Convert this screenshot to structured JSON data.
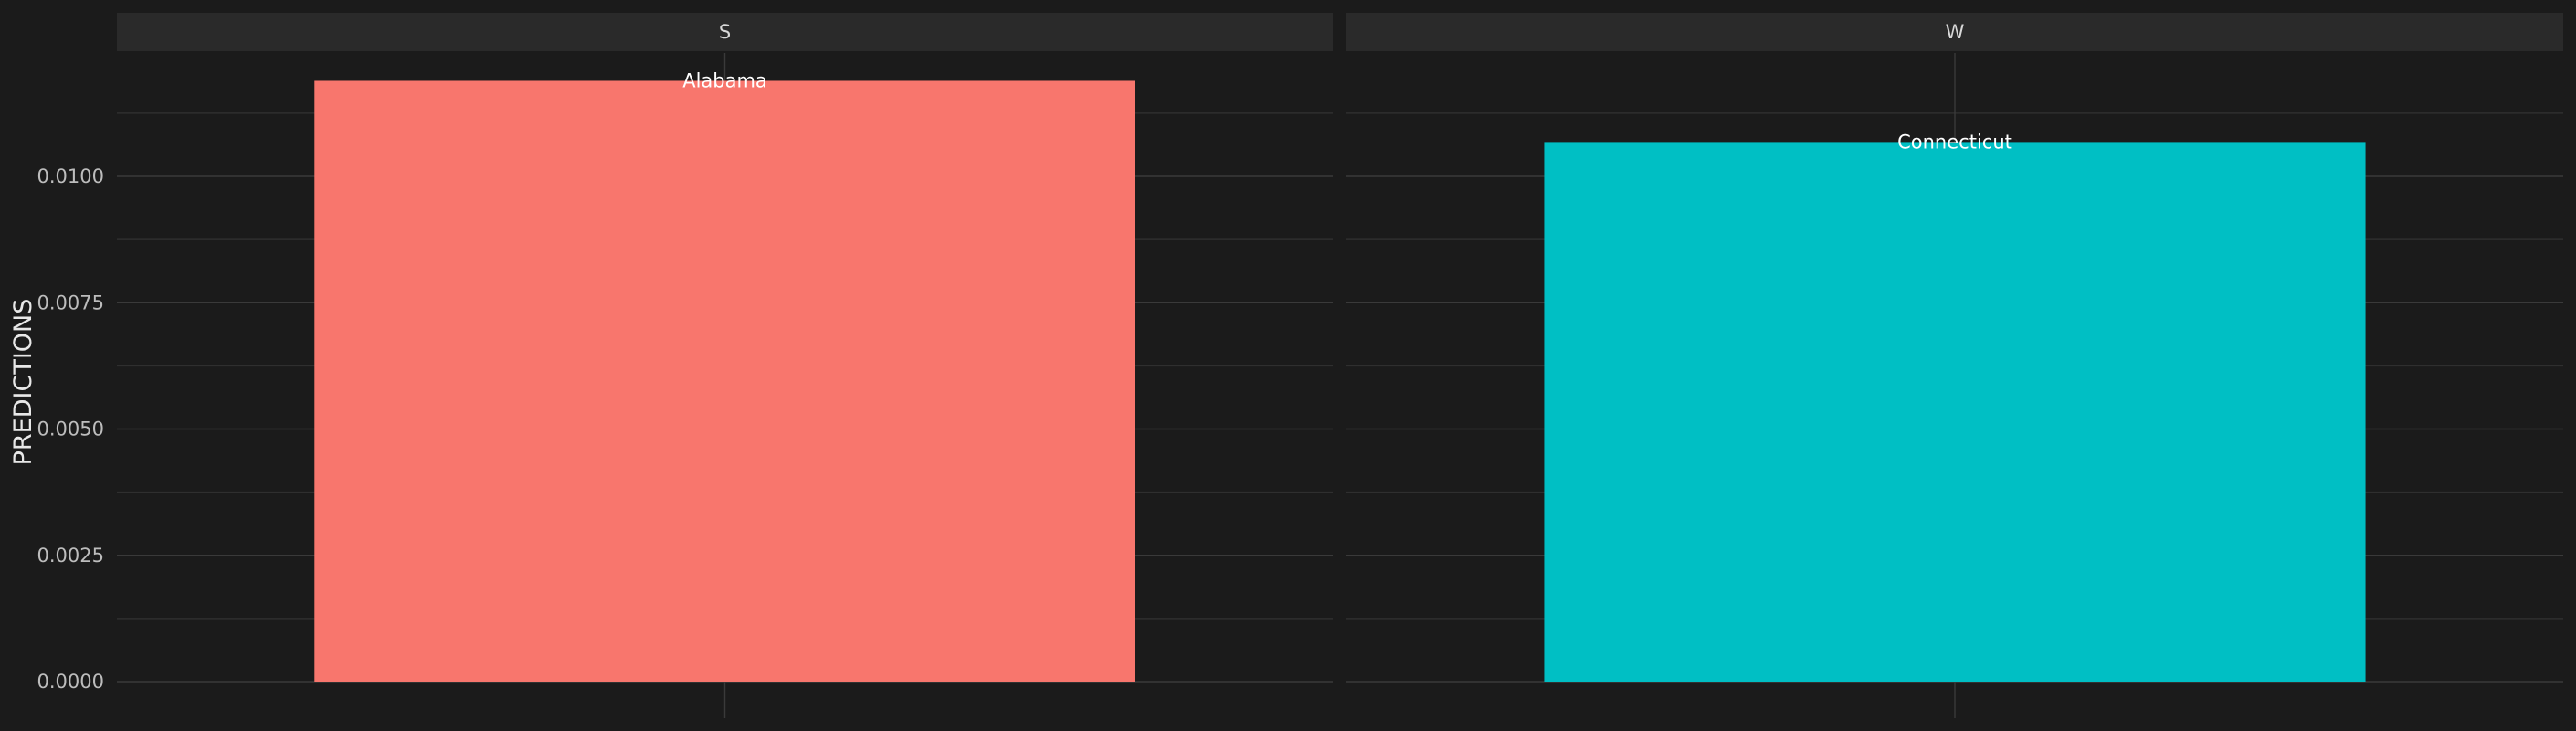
{
  "chart_data": {
    "type": "bar",
    "facet_by": "region",
    "facets": [
      {
        "label": "S",
        "categories": [
          "Alabama"
        ],
        "values": [
          0.01189
        ],
        "color": "#F8766D"
      },
      {
        "label": "W",
        "categories": [
          "Connecticut"
        ],
        "values": [
          0.01068
        ],
        "color": "#00BFC4"
      }
    ],
    "ylabel": "PREDICTIONS",
    "xlabel": "",
    "ylim": [
      0,
      0.0125
    ],
    "yticks": [
      "0.0000",
      "0.0025",
      "0.0050",
      "0.0075",
      "0.0100"
    ],
    "grid": true,
    "legend": "none",
    "theme": {
      "background": "#1b1b1b",
      "panel": "#1b1b1b",
      "strip": "#2a2a2a"
    }
  }
}
